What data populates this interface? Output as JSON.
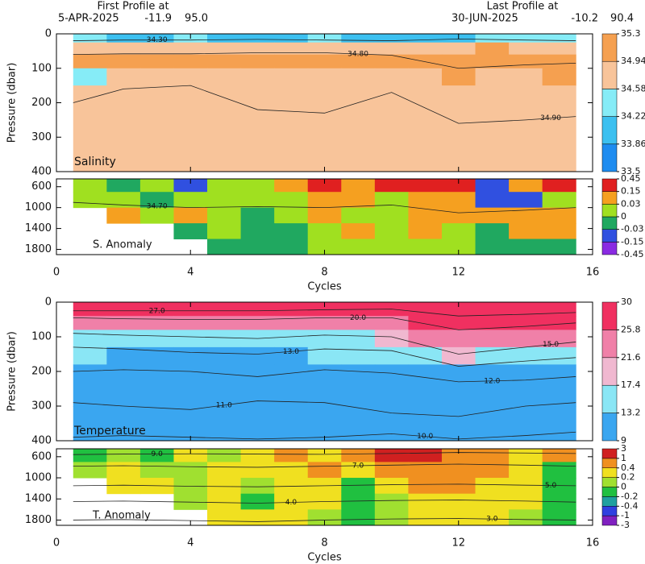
{
  "header": {
    "first": {
      "label": "First Profile at",
      "date": "5-APR-2025",
      "lat": "-11.9",
      "lon": "95.0"
    },
    "last": {
      "label": "Last Profile at",
      "date": "30-JUN-2025",
      "lat": "-10.2",
      "lon": "90.4"
    }
  },
  "chart_data": [
    {
      "type": "heatmap",
      "title": "Salinity",
      "y_label": "Pressure (dbar)",
      "x": [
        1,
        2,
        3,
        4,
        5,
        6,
        7,
        8,
        9,
        10,
        11,
        12,
        13,
        14,
        15
      ],
      "xlim": [
        0,
        16
      ],
      "xticks": [
        0,
        4,
        8,
        12,
        16
      ],
      "y_edges": [
        0,
        25,
        60,
        100,
        150,
        400
      ],
      "ylim": [
        0,
        400
      ],
      "yticks": [
        0,
        100,
        200,
        300,
        400
      ],
      "values": [
        [
          34.3,
          34.1,
          34.2,
          34.3,
          34.2,
          34.0,
          34.1,
          34.3,
          34.2,
          34.1,
          34.0,
          33.9,
          34.3,
          34.4,
          34.3
        ],
        [
          34.8,
          34.9,
          34.9,
          34.9,
          34.9,
          34.9,
          34.9,
          34.9,
          34.9,
          34.9,
          34.9,
          34.7,
          35.0,
          34.9,
          34.9
        ],
        [
          35.0,
          35.0,
          35.1,
          35.1,
          35.0,
          35.1,
          35.1,
          35.0,
          35.0,
          35.1,
          35.0,
          35.1,
          35.0,
          35.1,
          35.2
        ],
        [
          34.5,
          34.9,
          34.9,
          34.9,
          34.9,
          34.9,
          34.9,
          34.9,
          34.9,
          34.9,
          34.9,
          35.0,
          34.9,
          34.7,
          35.0
        ],
        [
          34.9,
          34.9,
          34.9,
          34.9,
          34.9,
          34.9,
          34.9,
          34.9,
          34.9,
          34.9,
          34.9,
          34.9,
          34.9,
          34.9,
          34.9
        ]
      ],
      "colorbar": {
        "ticks": [
          33.5,
          33.86,
          34.22,
          34.58,
          34.94,
          35.3
        ],
        "colors": [
          "#1e8cf0",
          "#3cc0f0",
          "#86ecf7",
          "#f8c49a",
          "#f5a050"
        ]
      },
      "contour_x": [
        0.5,
        2,
        4,
        6,
        8,
        10,
        12,
        14,
        15.5
      ],
      "contours": [
        {
          "value": 34.3,
          "label": "34.30",
          "y": [
            20,
            18,
            18,
            16,
            18,
            20,
            15,
            18,
            20
          ]
        },
        {
          "value": 34.8,
          "label": "34.80",
          "y": [
            60,
            58,
            58,
            55,
            55,
            62,
            100,
            90,
            85
          ]
        },
        {
          "value": 34.9,
          "label": "34.90",
          "y": [
            200,
            160,
            150,
            220,
            230,
            170,
            260,
            250,
            240
          ]
        }
      ]
    },
    {
      "type": "heatmap",
      "title": "S. Anomaly",
      "x_label": "Cycles",
      "x": [
        1,
        2,
        3,
        4,
        5,
        6,
        7,
        8,
        9,
        10,
        11,
        12,
        13,
        14,
        15
      ],
      "xlim": [
        0,
        16
      ],
      "xticks": [
        0,
        4,
        8,
        12,
        16
      ],
      "y_edges": [
        450,
        700,
        1000,
        1300,
        1600,
        1900
      ],
      "ylim": [
        450,
        1900
      ],
      "yticks": [
        600,
        1000,
        1400,
        1800
      ],
      "values": [
        [
          0.01,
          -0.02,
          0.01,
          -0.05,
          0.02,
          0,
          0.03,
          0.2,
          0.1,
          0.2,
          0.2,
          0.2,
          -0.1,
          0.1,
          0.2
        ],
        [
          0.02,
          0.01,
          -0.02,
          0.01,
          0,
          0.02,
          0.02,
          0.05,
          0.1,
          0.02,
          0.05,
          0.1,
          -0.1,
          -0.05,
          0.02
        ],
        [
          null,
          0.04,
          0.02,
          0.05,
          0.01,
          -0.02,
          0.02,
          0.1,
          0.02,
          0.01,
          0.05,
          0.1,
          0.05,
          0.1,
          0.1
        ],
        [
          null,
          null,
          null,
          -0.01,
          0.01,
          -0.01,
          -0.02,
          0.02,
          0.04,
          0.01,
          0.04,
          0.02,
          -0.02,
          0.05,
          0.04
        ],
        [
          null,
          null,
          null,
          null,
          -0.01,
          -0.01,
          -0.02,
          0.01,
          0.02,
          0.01,
          0.02,
          0.02,
          -0.01,
          -0.01,
          -0.02
        ]
      ],
      "colorbar": {
        "ticks": [
          -0.45,
          -0.15,
          -0.03,
          0,
          0.03,
          0.15,
          0.45
        ],
        "colors": [
          "#8a2be2",
          "#3050e0",
          "#20a860",
          "#a0e020",
          "#f5a020",
          "#e02020"
        ]
      },
      "contour_x": [
        0.5,
        2,
        4,
        6,
        8,
        10,
        12,
        14,
        15.5
      ],
      "contours": [
        {
          "value": 34.7,
          "label": "34.70",
          "y": [
            900,
            950,
            1000,
            980,
            1000,
            950,
            1100,
            1050,
            1000
          ]
        }
      ]
    },
    {
      "type": "heatmap",
      "title": "Temperature",
      "y_label": "Pressure (dbar)",
      "x": [
        1,
        2,
        3,
        4,
        5,
        6,
        7,
        8,
        9,
        10,
        11,
        12,
        13,
        14,
        15
      ],
      "xlim": [
        0,
        16
      ],
      "xticks": [
        0,
        4,
        8,
        12,
        16
      ],
      "y_edges": [
        0,
        40,
        80,
        130,
        180,
        300,
        400
      ],
      "ylim": [
        0,
        400
      ],
      "yticks": [
        0,
        100,
        200,
        300,
        400
      ],
      "values": [
        [
          28,
          28,
          28,
          28,
          28,
          28,
          28,
          28,
          28,
          28,
          29,
          29,
          29,
          29,
          29
        ],
        [
          23,
          23,
          23,
          23,
          23,
          22,
          22,
          23,
          23,
          24,
          26,
          27,
          27,
          27,
          26
        ],
        [
          16,
          16,
          16,
          16,
          16,
          16,
          16,
          17,
          17,
          18,
          22,
          24,
          23,
          23,
          22
        ],
        [
          13.5,
          13,
          13,
          13,
          13,
          13,
          13,
          14,
          14,
          14,
          15,
          18,
          17,
          16,
          15
        ],
        [
          12,
          12,
          12,
          12,
          12,
          12,
          12,
          12,
          12,
          12,
          12,
          12,
          12,
          12,
          12
        ],
        [
          11,
          11,
          11,
          11,
          11,
          11,
          11,
          11,
          11,
          11,
          11,
          11,
          11,
          11,
          11
        ]
      ],
      "colorbar": {
        "ticks": [
          9,
          13.2,
          17.4,
          21.6,
          25.8,
          30
        ],
        "colors": [
          "#3aa6f0",
          "#8ae6f5",
          "#f0b8d0",
          "#f080a8",
          "#f03060"
        ]
      },
      "contour_x": [
        0.5,
        2,
        4,
        6,
        8,
        10,
        12,
        14,
        15.5
      ],
      "contours": [
        {
          "value": 27,
          "label": "27.0",
          "y": [
            25,
            25,
            25,
            25,
            22,
            20,
            40,
            35,
            30
          ]
        },
        {
          "value": 20,
          "label": "20.0",
          "y": [
            45,
            48,
            50,
            50,
            45,
            45,
            80,
            70,
            60
          ]
        },
        {
          "value": 15,
          "label": "15.0",
          "y": [
            90,
            95,
            100,
            105,
            95,
            100,
            150,
            130,
            115
          ]
        },
        {
          "value": 13,
          "label": "13.0",
          "y": [
            130,
            135,
            145,
            150,
            135,
            140,
            185,
            170,
            160
          ]
        },
        {
          "value": 12,
          "label": "12.0",
          "y": [
            200,
            195,
            200,
            215,
            195,
            205,
            230,
            225,
            215
          ]
        },
        {
          "value": 11,
          "label": "11.0",
          "y": [
            290,
            300,
            310,
            285,
            290,
            320,
            330,
            300,
            290
          ]
        },
        {
          "value": 10,
          "label": "10.0",
          "y": [
            390,
            385,
            390,
            395,
            390,
            380,
            395,
            385,
            375
          ]
        }
      ]
    },
    {
      "type": "heatmap",
      "title": "T. Anomaly",
      "x_label": "Cycles",
      "x": [
        1,
        2,
        3,
        4,
        5,
        6,
        7,
        8,
        9,
        10,
        11,
        12,
        13,
        14,
        15
      ],
      "xlim": [
        0,
        16
      ],
      "xticks": [
        0,
        4,
        8,
        12,
        16
      ],
      "y_edges": [
        450,
        700,
        1000,
        1300,
        1600,
        1900
      ],
      "ylim": [
        450,
        1900
      ],
      "yticks": [
        600,
        1000,
        1400,
        1800
      ],
      "values": [
        [
          -0.1,
          0.1,
          -0.1,
          0.2,
          0.1,
          0.3,
          0.5,
          0.3,
          0.8,
          1.2,
          1.5,
          0.8,
          0.6,
          0.3,
          0.5
        ],
        [
          0.1,
          0.3,
          0.1,
          0,
          0.3,
          0.2,
          0.3,
          0.5,
          0.3,
          0.5,
          0.6,
          0.7,
          0.5,
          0.3,
          -0.1
        ],
        [
          null,
          0.3,
          0.2,
          0.1,
          0.3,
          0.1,
          0.2,
          0.3,
          -0.1,
          0.2,
          0.5,
          0.5,
          0.3,
          0.2,
          -0.1
        ],
        [
          null,
          null,
          null,
          0.1,
          0.2,
          -0.1,
          0.3,
          0.2,
          -0.1,
          0.1,
          0.3,
          0.3,
          0.2,
          0.2,
          -0.1
        ],
        [
          null,
          null,
          null,
          null,
          0.3,
          0.3,
          0.3,
          0.1,
          -0.1,
          0.1,
          0.2,
          0.3,
          0.2,
          0.1,
          -0.1
        ]
      ],
      "colorbar": {
        "ticks": [
          -3,
          -1,
          -0.4,
          -0.2,
          0,
          0.2,
          0.4,
          1,
          3
        ],
        "colors": [
          "#8020c0",
          "#3040e0",
          "#20a0a0",
          "#20c040",
          "#a0e030",
          "#f0e020",
          "#f09020",
          "#d02020"
        ]
      },
      "contour_x": [
        0.5,
        2,
        4,
        6,
        8,
        10,
        12,
        14,
        15.5
      ],
      "contours": [
        {
          "value": 9,
          "label": "9.0",
          "y": [
            560,
            550,
            545,
            550,
            555,
            540,
            520,
            530,
            540
          ]
        },
        {
          "value": 7,
          "label": "7.0",
          "y": [
            780,
            770,
            790,
            800,
            780,
            760,
            740,
            760,
            780
          ]
        },
        {
          "value": 5,
          "label": "5.0",
          "y": [
            1150,
            1140,
            1160,
            1170,
            1150,
            1130,
            1120,
            1140,
            1150
          ]
        },
        {
          "value": 4,
          "label": "4.0",
          "y": [
            1450,
            1440,
            1460,
            1480,
            1450,
            1430,
            1420,
            1440,
            1460
          ]
        },
        {
          "value": 3,
          "label": "3.0",
          "y": [
            1800,
            1790,
            1810,
            1830,
            1800,
            1780,
            1770,
            1790,
            1800
          ]
        }
      ]
    }
  ]
}
